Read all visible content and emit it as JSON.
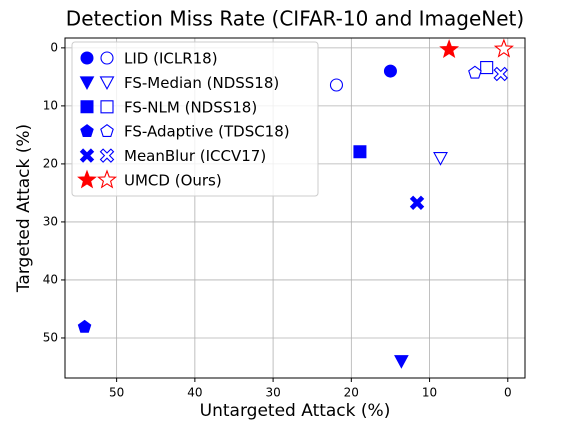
{
  "chart_data": {
    "type": "scatter",
    "title": "Detection Miss Rate (CIFAR-10 and ImageNet)",
    "x_label": "Untargeted Attack (%)",
    "y_label": "Targeted Attack (%)",
    "xlim": [
      56.6,
      -2.2
    ],
    "xticks": [
      50,
      40,
      30,
      20,
      10,
      0
    ],
    "ylim": [
      -1.7,
      56.9
    ],
    "yticks": [
      0,
      10,
      20,
      30,
      40,
      50
    ],
    "grid": true,
    "legend": "upper left",
    "marker_fill": [
      "full",
      "none"
    ],
    "series": [
      {
        "name": "LID (ICLR18)",
        "color": "#0000ff",
        "marker": "circle",
        "x": [
          15.0,
          21.9
        ],
        "y": [
          4.0,
          6.4
        ]
      },
      {
        "name": "FS-Median (NDSS18)",
        "color": "#0000ff",
        "marker": "triangle-down",
        "x": [
          13.6,
          8.6
        ],
        "y": [
          54.0,
          19.0
        ]
      },
      {
        "name": "FS-NLM (NDSS18)",
        "color": "#0000ff",
        "marker": "square",
        "x": [
          18.9,
          2.7
        ],
        "y": [
          17.9,
          3.4
        ]
      },
      {
        "name": "FS-Adaptive (TDSC18)",
        "color": "#0000ff",
        "marker": "pentagon",
        "x": [
          54.1,
          4.2
        ],
        "y": [
          48.1,
          4.3
        ]
      },
      {
        "name": "MeanBlur (ICCV17)",
        "color": "#0000ff",
        "marker": "x",
        "x": [
          11.6,
          0.9
        ],
        "y": [
          26.7,
          4.5
        ]
      },
      {
        "name": "UMCD (Ours)",
        "color": "#ff0000",
        "marker": "star",
        "x": [
          7.5,
          0.5
        ],
        "y": [
          0.3,
          0.2
        ]
      }
    ]
  }
}
